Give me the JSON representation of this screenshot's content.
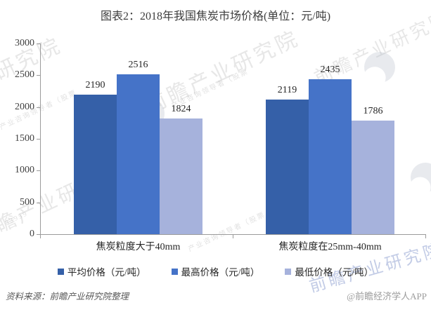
{
  "title": "图表2：2018年我国焦炭市场价格(单位：元/吨)",
  "chart_data": {
    "type": "bar",
    "categories": [
      "焦炭粒度大于40mm",
      "焦炭粒度在25mm-40mm"
    ],
    "series": [
      {
        "name": "平均价格（元/吨）",
        "values": [
          2190,
          2119
        ],
        "color": "#3560A8"
      },
      {
        "name": "最高价格（元/吨）",
        "values": [
          2516,
          2435
        ],
        "color": "#4573C8"
      },
      {
        "name": "最低价格（元/吨）",
        "values": [
          1824,
          1786
        ],
        "color": "#A6B2DC"
      }
    ],
    "ylim": [
      0,
      3000
    ],
    "yticks": [
      0,
      500,
      1000,
      1500,
      2000,
      2500,
      3000
    ],
    "grid": false,
    "legend_position": "bottom",
    "axis_color": "#9b9b9b"
  },
  "footer": {
    "source": "资料来源：前瞻产业研究院整理",
    "credit": "@前瞻经济学人APP"
  },
  "watermark": {
    "brand_text": "前瞻产业研究院",
    "sub_text": "产业咨询领导者（股票",
    "digits": "83959"
  }
}
